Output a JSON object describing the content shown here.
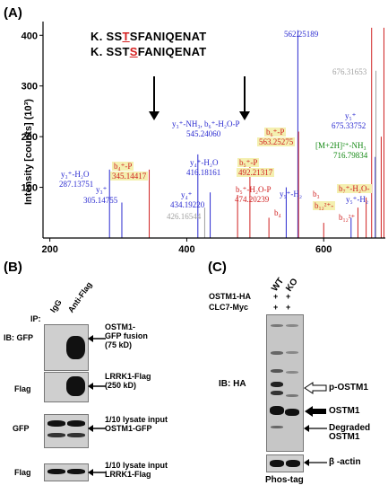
{
  "panel_a": {
    "label": "(A)",
    "sequences": [
      {
        "prefix": "K. SS",
        "mod": "T",
        "suffix": "SFANIQENAT"
      },
      {
        "prefix": "K. SST",
        "mod": "S",
        "suffix": "FANIQENAT"
      }
    ],
    "ylabel": "Intensity [counts] (10³)",
    "annotations": [
      {
        "text": "562.25189",
        "color": "blue"
      },
      {
        "text": "676.31653",
        "color": "gray"
      },
      {
        "text": "y₅⁺",
        "color": "blue"
      },
      {
        "text": "675.33752",
        "color": "blue"
      },
      {
        "text": "[M+2H]²⁺-NH₃",
        "color": "green"
      },
      {
        "text": "716.79834",
        "color": "green"
      },
      {
        "text": "y₃⁺-NH₃, b₆⁺-H₂O-P",
        "color": "blue"
      },
      {
        "text": "545.24060",
        "color": "blue"
      },
      {
        "text": "b₆⁺-P",
        "color": "red"
      },
      {
        "text": "563.25275",
        "color": "red"
      },
      {
        "text": "b₄⁺-P",
        "color": "red"
      },
      {
        "text": "345.14417",
        "color": "red"
      },
      {
        "text": "y₄⁺-H₂O",
        "color": "blue"
      },
      {
        "text": "416.18161",
        "color": "blue"
      },
      {
        "text": "b₅⁺-P",
        "color": "red"
      },
      {
        "text": "492.21317",
        "color": "red"
      },
      {
        "text": "y₃⁺-H₂O",
        "color": "blue"
      },
      {
        "text": "287.13751",
        "color": "blue"
      },
      {
        "text": "y₃⁺",
        "color": "blue"
      },
      {
        "text": "305.14755",
        "color": "blue"
      },
      {
        "text": "y₄⁺",
        "color": "blue"
      },
      {
        "text": "434.19220",
        "color": "blue"
      },
      {
        "text": "426.16544",
        "color": "gray"
      },
      {
        "text": "b₅⁺-H₂O-P",
        "color": "red"
      },
      {
        "text": "474.20239",
        "color": "red"
      },
      {
        "text": "b₄",
        "color": "red"
      },
      {
        "text": "y₅⁺-H₂",
        "color": "blue"
      },
      {
        "text": "b₃",
        "color": "red"
      },
      {
        "text": "b₇⁺-H₂O-",
        "color": "red"
      },
      {
        "text": "b₁₂²⁺-",
        "color": "red"
      },
      {
        "text": "y₅⁺-H₂",
        "color": "blue"
      },
      {
        "text": "b₁₂²⁺",
        "color": "red"
      }
    ]
  },
  "chart_data": {
    "type": "bar",
    "ylabel": "Intensity [counts] (10³)",
    "xlim": [
      190,
      690
    ],
    "ylim": [
      0,
      420
    ],
    "xticks": [
      200,
      400,
      600
    ],
    "yticks": [
      100,
      200,
      300,
      400
    ],
    "peaks": [
      {
        "x": 287.14,
        "y": 135,
        "color": "#2a2ad0"
      },
      {
        "x": 305.15,
        "y": 70,
        "color": "#2a2ad0"
      },
      {
        "x": 345.14,
        "y": 135,
        "color": "#d02020"
      },
      {
        "x": 416.18,
        "y": 165,
        "color": "#2a2ad0"
      },
      {
        "x": 426.17,
        "y": 60,
        "color": "#a0a0a0"
      },
      {
        "x": 434.19,
        "y": 90,
        "color": "#2a2ad0"
      },
      {
        "x": 474.2,
        "y": 85,
        "color": "#d02020"
      },
      {
        "x": 492.21,
        "y": 150,
        "color": "#d02020"
      },
      {
        "x": 520.0,
        "y": 40,
        "color": "#d02020"
      },
      {
        "x": 545.24,
        "y": 100,
        "color": "#2a2ad0"
      },
      {
        "x": 562.25,
        "y": 410,
        "color": "#2a2ad0"
      },
      {
        "x": 563.25,
        "y": 210,
        "color": "#d02020"
      },
      {
        "x": 600.0,
        "y": 30,
        "color": "#d02020"
      },
      {
        "x": 640.0,
        "y": 40,
        "color": "#2a2ad0"
      },
      {
        "x": 650.0,
        "y": 60,
        "color": "#d02020"
      },
      {
        "x": 662.0,
        "y": 80,
        "color": "#d02020"
      },
      {
        "x": 670.0,
        "y": 415,
        "color": "#d02020"
      },
      {
        "x": 675.34,
        "y": 160,
        "color": "#2a2ad0"
      },
      {
        "x": 676.32,
        "y": 330,
        "color": "#a0a0a0"
      },
      {
        "x": 684.0,
        "y": 200,
        "color": "#d02020"
      },
      {
        "x": 688.0,
        "y": 415,
        "color": "#d02020"
      }
    ]
  },
  "panel_b": {
    "label": "(B)",
    "lanes": [
      "IgG",
      "Anti-Flag"
    ],
    "ip": "IP:",
    "rows": [
      {
        "left": "IB: GFP",
        "right": "OSTM1-\nGFP fusion\n(75 kD)"
      },
      {
        "left": "Flag",
        "right": "LRRK1-Flag\n(250 kD)"
      },
      {
        "left": "GFP",
        "right": "1/10 lysate input\nOSTM1-GFP"
      },
      {
        "left": "Flag",
        "right": "1/10 lysate input\nLRRK1-Flag"
      }
    ]
  },
  "panel_c": {
    "label": "(C)",
    "lanes": [
      "WT",
      "KO"
    ],
    "conditions": [
      {
        "name": "OSTM1-HA",
        "signs": [
          "+",
          "+"
        ]
      },
      {
        "name": "CLC7-Myc",
        "signs": [
          "+",
          "+"
        ]
      }
    ],
    "ib": "IB: HA",
    "bands": [
      "p-OSTM1",
      "OSTM1",
      "Degraded\nOSTM1"
    ],
    "actin": "β -actin",
    "phostag": "Phos-tag"
  }
}
